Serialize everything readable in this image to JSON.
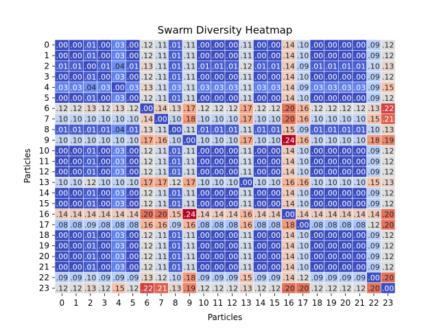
{
  "chart_data": {
    "type": "heatmap",
    "title": "Swarm Diversity Heatmap",
    "xlabel": "Particles",
    "ylabel": "Particles",
    "x_categories": [
      "0",
      "1",
      "2",
      "3",
      "4",
      "5",
      "6",
      "7",
      "8",
      "9",
      "10",
      "11",
      "12",
      "13",
      "14",
      "15",
      "16",
      "17",
      "18",
      "19",
      "20",
      "21",
      "22",
      "23"
    ],
    "y_categories": [
      "0",
      "1",
      "2",
      "3",
      "4",
      "5",
      "6",
      "7",
      "8",
      "9",
      "10",
      "11",
      "12",
      "13",
      "14",
      "15",
      "16",
      "17",
      "18",
      "19",
      "20",
      "21",
      "22",
      "23"
    ],
    "colormap": "coolwarm",
    "value_range": [
      0.0,
      0.24
    ],
    "colorbar": false,
    "cell_text_format": "2dp, leading zero dropped",
    "matrix": [
      [
        0.0,
        0.0,
        0.01,
        0.0,
        0.03,
        0.0,
        0.12,
        0.11,
        0.01,
        0.11,
        0.0,
        0.0,
        0.0,
        0.11,
        0.0,
        0.0,
        0.14,
        0.1,
        0.0,
        0.0,
        0.0,
        0.0,
        0.09,
        0.12
      ],
      [
        0.0,
        0.0,
        0.01,
        0.0,
        0.03,
        0.0,
        0.12,
        0.11,
        0.01,
        0.11,
        0.0,
        0.0,
        0.0,
        0.11,
        0.0,
        0.0,
        0.14,
        0.1,
        0.0,
        0.0,
        0.0,
        0.0,
        0.09,
        0.12
      ],
      [
        0.01,
        0.01,
        0.0,
        0.01,
        0.04,
        0.01,
        0.13,
        0.11,
        0.01,
        0.11,
        0.01,
        0.01,
        0.01,
        0.12,
        0.01,
        0.01,
        0.14,
        0.09,
        0.01,
        0.01,
        0.01,
        0.01,
        0.1,
        0.13
      ],
      [
        0.0,
        0.0,
        0.01,
        0.0,
        0.03,
        0.0,
        0.12,
        0.11,
        0.01,
        0.11,
        0.0,
        0.0,
        0.0,
        0.11,
        0.0,
        0.0,
        0.14,
        0.1,
        0.0,
        0.0,
        0.0,
        0.0,
        0.09,
        0.12
      ],
      [
        0.03,
        0.03,
        0.04,
        0.03,
        0.0,
        0.03,
        0.13,
        0.11,
        0.03,
        0.11,
        0.03,
        0.03,
        0.03,
        0.11,
        0.03,
        0.03,
        0.14,
        0.09,
        0.03,
        0.03,
        0.03,
        0.03,
        0.09,
        0.15
      ],
      [
        0.0,
        0.0,
        0.01,
        0.0,
        0.03,
        0.0,
        0.12,
        0.11,
        0.01,
        0.11,
        0.0,
        0.0,
        0.0,
        0.11,
        0.0,
        0.0,
        0.14,
        0.1,
        0.0,
        0.0,
        0.0,
        0.0,
        0.09,
        0.12
      ],
      [
        0.12,
        0.12,
        0.13,
        0.12,
        0.13,
        0.12,
        0.0,
        0.14,
        0.13,
        0.17,
        0.12,
        0.12,
        0.12,
        0.17,
        0.12,
        0.12,
        0.2,
        0.16,
        0.12,
        0.12,
        0.12,
        0.12,
        0.13,
        0.22
      ],
      [
        0.1,
        0.1,
        0.1,
        0.1,
        0.1,
        0.1,
        0.14,
        0.0,
        0.1,
        0.18,
        0.1,
        0.1,
        0.1,
        0.17,
        0.1,
        0.1,
        0.2,
        0.16,
        0.1,
        0.1,
        0.1,
        0.1,
        0.15,
        0.21
      ],
      [
        0.01,
        0.01,
        0.01,
        0.01,
        0.04,
        0.01,
        0.13,
        0.11,
        0.0,
        0.11,
        0.01,
        0.01,
        0.01,
        0.11,
        0.01,
        0.01,
        0.15,
        0.09,
        0.01,
        0.01,
        0.01,
        0.01,
        0.1,
        0.13
      ],
      [
        0.1,
        0.1,
        0.1,
        0.1,
        0.1,
        0.1,
        0.17,
        0.16,
        0.1,
        0.0,
        0.1,
        0.1,
        0.1,
        0.17,
        0.1,
        0.1,
        0.24,
        0.16,
        0.1,
        0.1,
        0.1,
        0.1,
        0.18,
        0.19
      ],
      [
        0.0,
        0.0,
        0.01,
        0.0,
        0.03,
        0.0,
        0.12,
        0.11,
        0.01,
        0.11,
        0.0,
        0.0,
        0.0,
        0.11,
        0.0,
        0.0,
        0.14,
        0.1,
        0.0,
        0.0,
        0.0,
        0.0,
        0.09,
        0.12
      ],
      [
        0.0,
        0.0,
        0.01,
        0.0,
        0.03,
        0.0,
        0.12,
        0.11,
        0.01,
        0.11,
        0.0,
        0.0,
        0.0,
        0.11,
        0.0,
        0.0,
        0.14,
        0.1,
        0.0,
        0.0,
        0.0,
        0.0,
        0.09,
        0.12
      ],
      [
        0.0,
        0.0,
        0.01,
        0.0,
        0.03,
        0.0,
        0.12,
        0.11,
        0.01,
        0.11,
        0.0,
        0.0,
        0.0,
        0.11,
        0.0,
        0.0,
        0.14,
        0.1,
        0.0,
        0.0,
        0.0,
        0.0,
        0.09,
        0.12
      ],
      [
        0.1,
        0.1,
        0.12,
        0.1,
        0.1,
        0.1,
        0.17,
        0.17,
        0.12,
        0.17,
        0.1,
        0.1,
        0.1,
        0.0,
        0.1,
        0.1,
        0.16,
        0.16,
        0.1,
        0.1,
        0.1,
        0.1,
        0.15,
        0.13
      ],
      [
        0.0,
        0.0,
        0.01,
        0.0,
        0.03,
        0.0,
        0.12,
        0.11,
        0.01,
        0.11,
        0.0,
        0.0,
        0.0,
        0.11,
        0.0,
        0.0,
        0.14,
        0.1,
        0.0,
        0.0,
        0.0,
        0.0,
        0.09,
        0.12
      ],
      [
        0.0,
        0.0,
        0.01,
        0.0,
        0.03,
        0.0,
        0.12,
        0.11,
        0.01,
        0.11,
        0.0,
        0.0,
        0.0,
        0.11,
        0.0,
        0.0,
        0.14,
        0.1,
        0.0,
        0.0,
        0.0,
        0.0,
        0.09,
        0.12
      ],
      [
        0.14,
        0.14,
        0.14,
        0.14,
        0.14,
        0.14,
        0.2,
        0.2,
        0.15,
        0.24,
        0.14,
        0.14,
        0.14,
        0.16,
        0.14,
        0.14,
        0.0,
        0.14,
        0.14,
        0.14,
        0.14,
        0.14,
        0.14,
        0.2
      ],
      [
        0.08,
        0.08,
        0.09,
        0.08,
        0.08,
        0.08,
        0.16,
        0.16,
        0.09,
        0.16,
        0.08,
        0.08,
        0.08,
        0.16,
        0.08,
        0.08,
        0.18,
        0.0,
        0.08,
        0.08,
        0.08,
        0.08,
        0.12,
        0.2
      ],
      [
        0.0,
        0.0,
        0.01,
        0.0,
        0.03,
        0.0,
        0.12,
        0.11,
        0.01,
        0.11,
        0.0,
        0.0,
        0.0,
        0.11,
        0.0,
        0.0,
        0.14,
        0.1,
        0.0,
        0.0,
        0.0,
        0.0,
        0.09,
        0.12
      ],
      [
        0.0,
        0.0,
        0.01,
        0.0,
        0.03,
        0.0,
        0.12,
        0.11,
        0.01,
        0.11,
        0.0,
        0.0,
        0.0,
        0.11,
        0.0,
        0.0,
        0.14,
        0.1,
        0.0,
        0.0,
        0.0,
        0.0,
        0.09,
        0.12
      ],
      [
        0.0,
        0.0,
        0.01,
        0.0,
        0.03,
        0.0,
        0.12,
        0.11,
        0.01,
        0.11,
        0.0,
        0.0,
        0.0,
        0.11,
        0.0,
        0.0,
        0.14,
        0.1,
        0.0,
        0.0,
        0.0,
        0.0,
        0.09,
        0.12
      ],
      [
        0.0,
        0.0,
        0.01,
        0.0,
        0.03,
        0.0,
        0.12,
        0.11,
        0.01,
        0.11,
        0.0,
        0.0,
        0.0,
        0.11,
        0.0,
        0.0,
        0.14,
        0.1,
        0.0,
        0.0,
        0.0,
        0.0,
        0.09,
        0.12
      ],
      [
        0.09,
        0.09,
        0.1,
        0.09,
        0.09,
        0.09,
        0.13,
        0.12,
        0.1,
        0.18,
        0.09,
        0.09,
        0.09,
        0.15,
        0.09,
        0.09,
        0.14,
        0.12,
        0.09,
        0.09,
        0.09,
        0.09,
        0.0,
        0.2
      ],
      [
        0.12,
        0.12,
        0.13,
        0.12,
        0.15,
        0.12,
        0.22,
        0.21,
        0.13,
        0.19,
        0.12,
        0.12,
        0.12,
        0.13,
        0.12,
        0.12,
        0.2,
        0.2,
        0.12,
        0.12,
        0.12,
        0.12,
        0.2,
        0.0
      ]
    ]
  }
}
